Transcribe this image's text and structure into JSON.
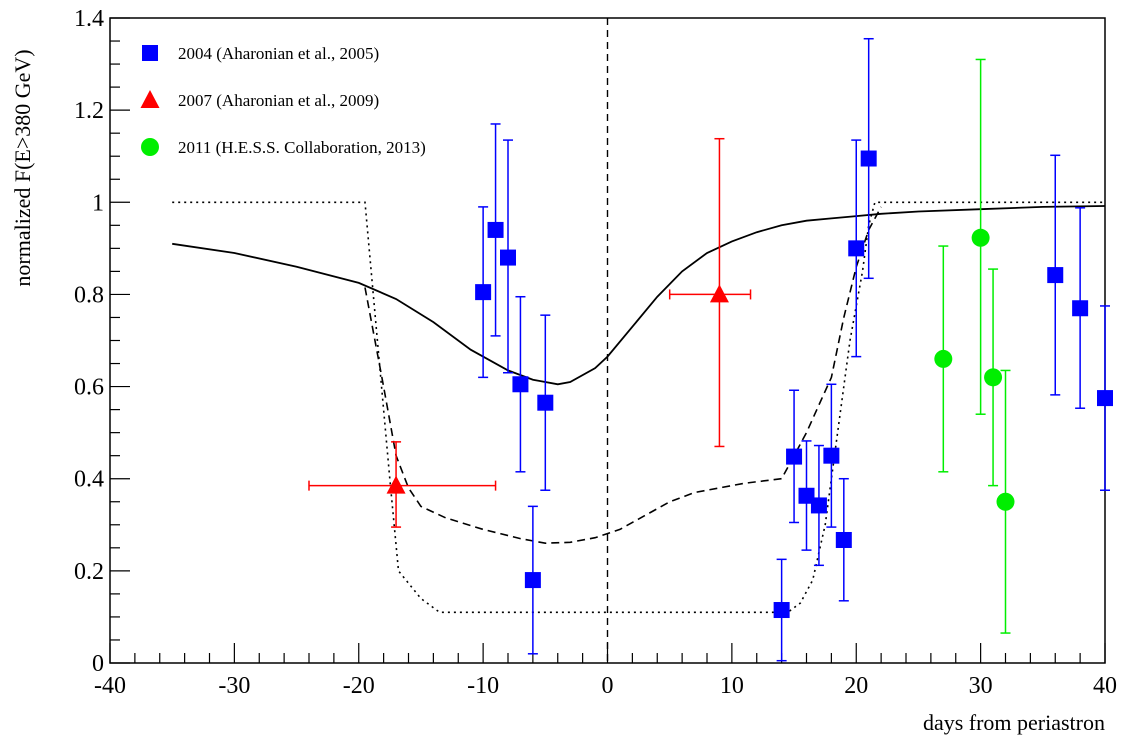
{
  "chart_data": {
    "type": "scatter",
    "title": "",
    "xlabel": "days from periastron",
    "ylabel": "normalized F(E>380 GeV)",
    "xlim": [
      -40,
      40
    ],
    "ylim": [
      0,
      1.4
    ],
    "x_ticks": [
      -40,
      -30,
      -20,
      -10,
      0,
      10,
      20,
      30,
      40
    ],
    "x_tick_labels": [
      "-40",
      "-30",
      "-20",
      "-10",
      "0",
      "10",
      "20",
      "30",
      "40"
    ],
    "y_ticks": [
      0,
      0.2,
      0.4,
      0.6,
      0.8,
      1,
      1.2,
      1.4
    ],
    "y_tick_labels": [
      "0",
      "0.2",
      "0.4",
      "0.6",
      "0.8",
      "1",
      "1.2",
      "1.4"
    ],
    "grid": false,
    "legend_position": "top-left",
    "series": [
      {
        "name": "2004 (Aharonian et al., 2005)",
        "marker": "square",
        "color": "#0000ff",
        "points": [
          {
            "x": -10,
            "y": 0.805,
            "ylo": 0.62,
            "yhi": 0.99
          },
          {
            "x": -9,
            "y": 0.94,
            "ylo": 0.71,
            "yhi": 1.17
          },
          {
            "x": -8,
            "y": 0.88,
            "ylo": 0.63,
            "yhi": 1.135
          },
          {
            "x": -7,
            "y": 0.605,
            "ylo": 0.415,
            "yhi": 0.795
          },
          {
            "x": -6,
            "y": 0.18,
            "ylo": 0.02,
            "yhi": 0.34
          },
          {
            "x": -5,
            "y": 0.565,
            "ylo": 0.375,
            "yhi": 0.755
          },
          {
            "x": 14,
            "y": 0.115,
            "ylo": 0.005,
            "yhi": 0.225
          },
          {
            "x": 15,
            "y": 0.448,
            "ylo": 0.305,
            "yhi": 0.592
          },
          {
            "x": 16,
            "y": 0.363,
            "ylo": 0.245,
            "yhi": 0.482
          },
          {
            "x": 17,
            "y": 0.342,
            "ylo": 0.212,
            "yhi": 0.472
          },
          {
            "x": 18,
            "y": 0.45,
            "ylo": 0.295,
            "yhi": 0.605
          },
          {
            "x": 19,
            "y": 0.267,
            "ylo": 0.135,
            "yhi": 0.4
          },
          {
            "x": 20,
            "y": 0.9,
            "ylo": 0.665,
            "yhi": 1.135
          },
          {
            "x": 21,
            "y": 1.095,
            "ylo": 0.835,
            "yhi": 1.355
          },
          {
            "x": 36,
            "y": 0.842,
            "ylo": 0.582,
            "yhi": 1.102
          },
          {
            "x": 38,
            "y": 0.77,
            "ylo": 0.553,
            "yhi": 0.988
          },
          {
            "x": 40,
            "y": 0.575,
            "ylo": 0.375,
            "yhi": 0.775
          }
        ]
      },
      {
        "name": "2007 (Aharonian et al., 2009)",
        "marker": "triangle",
        "color": "#ff0000",
        "points": [
          {
            "x": -17,
            "y": 0.385,
            "ylo": 0.295,
            "yhi": 0.48,
            "xlo": -24,
            "xhi": -9
          },
          {
            "x": 9,
            "y": 0.8,
            "ylo": 0.47,
            "yhi": 1.138,
            "xlo": 5,
            "xhi": 11.5
          }
        ]
      },
      {
        "name": "2011 (H.E.S.S. Collaboration, 2013)",
        "marker": "circle",
        "color": "#00ee00",
        "points": [
          {
            "x": 27,
            "y": 0.66,
            "ylo": 0.415,
            "yhi": 0.905
          },
          {
            "x": 30,
            "y": 0.923,
            "ylo": 0.54,
            "yhi": 1.31
          },
          {
            "x": 31,
            "y": 0.62,
            "ylo": 0.385,
            "yhi": 0.855
          },
          {
            "x": 32,
            "y": 0.35,
            "ylo": 0.065,
            "yhi": 0.635
          }
        ]
      }
    ],
    "curves": [
      {
        "style": "solid",
        "color": "#000000",
        "points": [
          [
            -35,
            0.91
          ],
          [
            -30,
            0.89
          ],
          [
            -25,
            0.86
          ],
          [
            -20,
            0.825
          ],
          [
            -17,
            0.79
          ],
          [
            -14,
            0.74
          ],
          [
            -11,
            0.68
          ],
          [
            -8,
            0.635
          ],
          [
            -6,
            0.615
          ],
          [
            -4,
            0.605
          ],
          [
            -3,
            0.61
          ],
          [
            -1,
            0.64
          ],
          [
            0,
            0.665
          ],
          [
            2,
            0.73
          ],
          [
            4,
            0.795
          ],
          [
            6,
            0.85
          ],
          [
            8,
            0.89
          ],
          [
            10,
            0.915
          ],
          [
            12,
            0.935
          ],
          [
            14,
            0.95
          ],
          [
            16,
            0.96
          ],
          [
            18,
            0.965
          ],
          [
            20,
            0.97
          ],
          [
            22,
            0.975
          ],
          [
            25,
            0.98
          ],
          [
            30,
            0.985
          ],
          [
            35,
            0.99
          ],
          [
            40,
            0.992
          ]
        ]
      },
      {
        "style": "dashed",
        "color": "#000000",
        "points": [
          [
            -19.5,
            0.815
          ],
          [
            -18,
            0.6
          ],
          [
            -17,
            0.45
          ],
          [
            -16,
            0.38
          ],
          [
            -15,
            0.34
          ],
          [
            -13,
            0.315
          ],
          [
            -10,
            0.29
          ],
          [
            -7,
            0.27
          ],
          [
            -5,
            0.26
          ],
          [
            -3,
            0.262
          ],
          [
            -1,
            0.272
          ],
          [
            1,
            0.29
          ],
          [
            3,
            0.32
          ],
          [
            5,
            0.35
          ],
          [
            7,
            0.37
          ],
          [
            9,
            0.38
          ],
          [
            11,
            0.39
          ],
          [
            14,
            0.4
          ],
          [
            15,
            0.45
          ],
          [
            16,
            0.5
          ],
          [
            17,
            0.56
          ],
          [
            18,
            0.62
          ],
          [
            19,
            0.75
          ],
          [
            20,
            0.86
          ],
          [
            21,
            0.94
          ],
          [
            22,
            0.99
          ]
        ]
      },
      {
        "style": "dotted",
        "color": "#000000",
        "points": [
          [
            -35,
            1.0
          ],
          [
            -19.5,
            1.0
          ],
          [
            -18.5,
            0.7
          ],
          [
            -17.5,
            0.4
          ],
          [
            -16.8,
            0.2
          ],
          [
            -15,
            0.14
          ],
          [
            -13.5,
            0.11
          ],
          [
            0,
            0.11
          ],
          [
            14.5,
            0.11
          ],
          [
            15.5,
            0.13
          ],
          [
            16.5,
            0.18
          ],
          [
            17.5,
            0.3
          ],
          [
            18.5,
            0.5
          ],
          [
            19.5,
            0.7
          ],
          [
            20.5,
            0.85
          ],
          [
            21,
            0.95
          ],
          [
            21.5,
            1.0
          ],
          [
            40,
            1.0
          ]
        ]
      }
    ],
    "vline_x": 0
  }
}
